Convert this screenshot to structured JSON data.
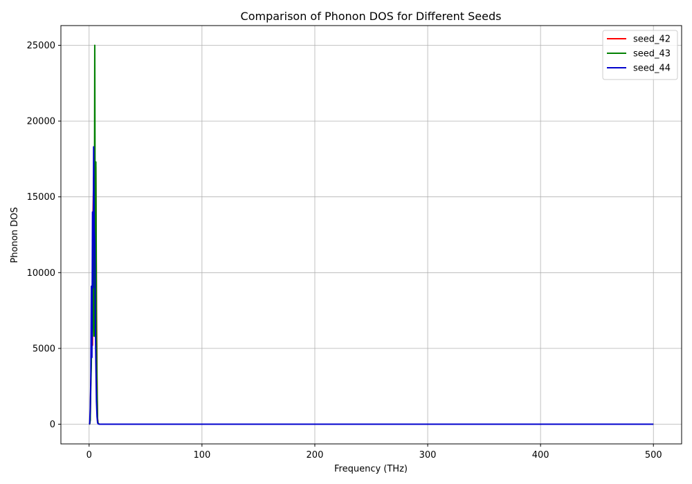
{
  "chart_data": {
    "type": "line",
    "title": "Comparison of Phonon DOS for Different Seeds",
    "xlabel": "Frequency (THz)",
    "ylabel": "Phonon DOS",
    "xlim": [
      -25,
      525
    ],
    "ylim": [
      -1300,
      26300
    ],
    "xticks": [
      0,
      100,
      200,
      300,
      400,
      500
    ],
    "yticks": [
      0,
      5000,
      10000,
      15000,
      20000,
      25000
    ],
    "grid": true,
    "legend_position": "top-right",
    "series": [
      {
        "name": "seed_42",
        "color": "#ff0000",
        "x": [
          0,
          0.5,
          1.0,
          1.5,
          2.0,
          2.5,
          3.0,
          3.5,
          4.0,
          4.5,
          5.0,
          5.5,
          6.0,
          6.5,
          7.0,
          7.5,
          8.0,
          9.0,
          10.0,
          20.0,
          100.0,
          200.0,
          300.0,
          400.0,
          500.0
        ],
        "y": [
          0,
          20,
          300,
          2800,
          4500,
          8800,
          5200,
          14000,
          16300,
          9500,
          16000,
          11000,
          17000,
          8500,
          3000,
          400,
          50,
          5,
          0,
          0,
          0,
          0,
          0,
          0,
          0
        ]
      },
      {
        "name": "seed_43",
        "color": "#008000",
        "x": [
          0,
          0.5,
          1.0,
          1.5,
          2.0,
          2.5,
          3.0,
          3.5,
          4.0,
          4.5,
          5.0,
          5.5,
          6.0,
          6.5,
          7.0,
          7.5,
          8.0,
          9.0,
          10.0,
          20.0,
          100.0,
          200.0,
          300.0,
          400.0,
          500.0
        ],
        "y": [
          0,
          15,
          250,
          2500,
          4000,
          8000,
          5800,
          12000,
          7000,
          5800,
          25000,
          9000,
          17300,
          6000,
          2500,
          300,
          40,
          5,
          0,
          0,
          0,
          0,
          0,
          0,
          0
        ]
      },
      {
        "name": "seed_44",
        "color": "#0000cc",
        "x": [
          0,
          0.5,
          1.0,
          1.5,
          2.0,
          2.5,
          3.0,
          3.5,
          4.0,
          4.5,
          5.0,
          5.5,
          6.0,
          6.5,
          7.0,
          7.5,
          8.0,
          9.0,
          10.0,
          20.0,
          100.0,
          200.0,
          300.0,
          400.0,
          500.0
        ],
        "y": [
          0,
          30,
          1000,
          3000,
          9100,
          4400,
          14000,
          9000,
          18300,
          13000,
          12000,
          7000,
          4000,
          1500,
          500,
          100,
          20,
          2,
          0,
          0,
          0,
          0,
          0,
          0,
          0
        ]
      }
    ]
  }
}
